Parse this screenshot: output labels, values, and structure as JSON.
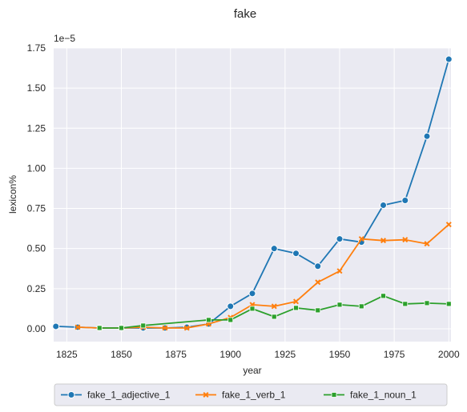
{
  "chart_data": {
    "type": "line",
    "title": "fake",
    "xlabel": "year",
    "ylabel": "lexicon%",
    "y_exponent_label": "1e−5",
    "xlim": [
      1819,
      2001
    ],
    "ylim": [
      -0.08,
      1.75
    ],
    "x_ticks": [
      {
        "value": 1825,
        "label": "1825"
      },
      {
        "value": 1850,
        "label": "1850"
      },
      {
        "value": 1875,
        "label": "1875"
      },
      {
        "value": 1900,
        "label": "1900"
      },
      {
        "value": 1925,
        "label": "1925"
      },
      {
        "value": 1950,
        "label": "1950"
      },
      {
        "value": 1975,
        "label": "1975"
      },
      {
        "value": 2000,
        "label": "2000"
      }
    ],
    "y_ticks": [
      {
        "value": 0.0,
        "label": "0.00"
      },
      {
        "value": 0.25,
        "label": "0.25"
      },
      {
        "value": 0.5,
        "label": "0.50"
      },
      {
        "value": 0.75,
        "label": "0.75"
      },
      {
        "value": 1.0,
        "label": "1.00"
      },
      {
        "value": 1.25,
        "label": "1.25"
      },
      {
        "value": 1.5,
        "label": "1.50"
      },
      {
        "value": 1.75,
        "label": "1.75"
      }
    ],
    "grid": true,
    "legend_position": "bottom",
    "series": [
      {
        "name": "fake_1_adjective_1",
        "color": "#1f77b4",
        "marker": "circle",
        "points": [
          [
            1820,
            0.015
          ],
          [
            1830,
            0.01
          ],
          [
            1840,
            0.005
          ],
          [
            1850,
            0.005
          ],
          [
            1860,
            0.005
          ],
          [
            1870,
            0.005
          ],
          [
            1880,
            0.01
          ],
          [
            1890,
            0.03
          ],
          [
            1900,
            0.14
          ],
          [
            1910,
            0.22
          ],
          [
            1920,
            0.5
          ],
          [
            1930,
            0.47
          ],
          [
            1940,
            0.39
          ],
          [
            1950,
            0.56
          ],
          [
            1960,
            0.54
          ],
          [
            1970,
            0.77
          ],
          [
            1980,
            0.8
          ],
          [
            1990,
            1.2
          ],
          [
            2000,
            1.68
          ]
        ]
      },
      {
        "name": "fake_1_verb_1",
        "color": "#ff7f0e",
        "marker": "x",
        "points": [
          [
            1830,
            0.01
          ],
          [
            1840,
            0.005
          ],
          [
            1850,
            0.005
          ],
          [
            1860,
            0.01
          ],
          [
            1870,
            0.005
          ],
          [
            1880,
            0.005
          ],
          [
            1890,
            0.03
          ],
          [
            1900,
            0.07
          ],
          [
            1910,
            0.15
          ],
          [
            1920,
            0.14
          ],
          [
            1930,
            0.17
          ],
          [
            1940,
            0.29
          ],
          [
            1950,
            0.36
          ],
          [
            1960,
            0.56
          ],
          [
            1970,
            0.55
          ],
          [
            1980,
            0.555
          ],
          [
            1990,
            0.53
          ],
          [
            2000,
            0.65
          ]
        ]
      },
      {
        "name": "fake_1_noun_1",
        "color": "#2ca02c",
        "marker": "square",
        "points": [
          [
            1840,
            0.005
          ],
          [
            1850,
            0.005
          ],
          [
            1860,
            0.02
          ],
          [
            1890,
            0.055
          ],
          [
            1900,
            0.055
          ],
          [
            1910,
            0.125
          ],
          [
            1920,
            0.075
          ],
          [
            1930,
            0.13
          ],
          [
            1940,
            0.115
          ],
          [
            1950,
            0.15
          ],
          [
            1960,
            0.14
          ],
          [
            1970,
            0.205
          ],
          [
            1980,
            0.155
          ],
          [
            1990,
            0.16
          ],
          [
            2000,
            0.155
          ]
        ]
      }
    ]
  }
}
